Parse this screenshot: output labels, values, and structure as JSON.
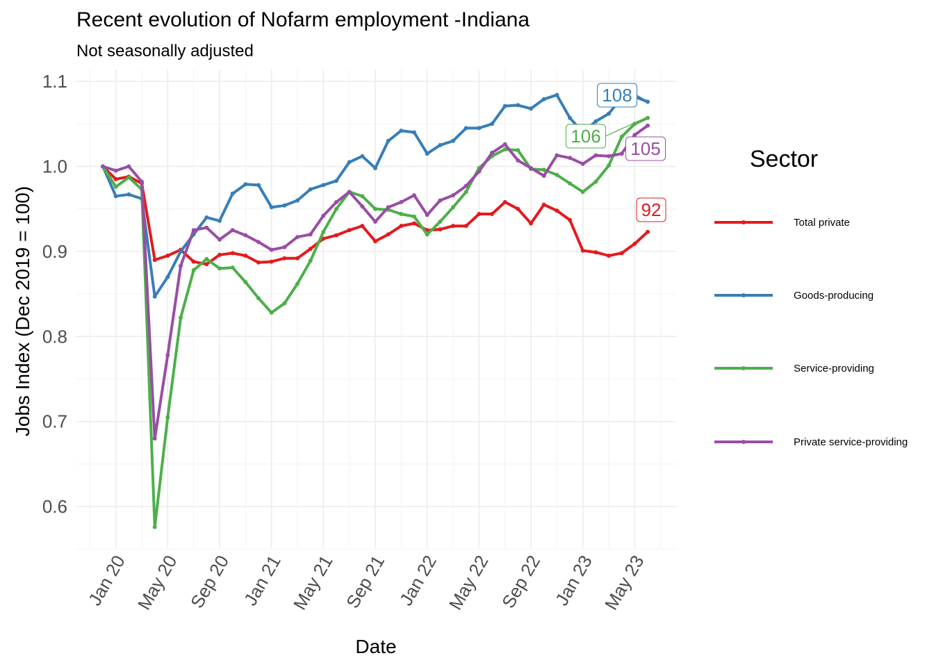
{
  "chart_data": {
    "type": "line",
    "title": "Recent evolution of Nofarm employment -Indiana",
    "subtitle": "Not seasonally adjusted",
    "xlabel": "Date",
    "ylabel": "Jobs Index (Dec 2019 = 100)",
    "ylim": [
      0.55,
      1.1
    ],
    "y_ticks": [
      0.6,
      0.7,
      0.8,
      0.9,
      1.0,
      1.1
    ],
    "y_tick_labels": [
      "0.6",
      "0.7",
      "0.8",
      "0.9",
      "1.0",
      "1.1"
    ],
    "x_ticks": [
      "Jan 20",
      "May 20",
      "Sep 20",
      "Jan 21",
      "May 21",
      "Sep 21",
      "Jan 22",
      "May 22",
      "Sep 22",
      "Jan 23",
      "May 23"
    ],
    "x_tick_index": [
      1,
      5,
      9,
      13,
      17,
      21,
      25,
      29,
      33,
      37,
      41
    ],
    "x_start": "Dec 2019",
    "x_end": "Jun 2023",
    "grid": true,
    "legend": {
      "title": "Sector",
      "position": "right"
    },
    "series": [
      {
        "name": "Total private",
        "color": "#E41A1C",
        "end_label": "92",
        "values": [
          1.0,
          0.985,
          0.988,
          0.98,
          0.89,
          0.895,
          0.902,
          0.888,
          0.885,
          0.896,
          0.898,
          0.895,
          0.887,
          0.888,
          0.892,
          0.892,
          0.903,
          0.915,
          0.919,
          0.925,
          0.93,
          0.912,
          0.92,
          0.93,
          0.933,
          0.925,
          0.926,
          0.93,
          0.93,
          0.944,
          0.944,
          0.958,
          0.95,
          0.933,
          0.955,
          0.948,
          0.937,
          0.901,
          0.899,
          0.895,
          0.898,
          0.909,
          0.923
        ]
      },
      {
        "name": "Goods-producing",
        "color": "#377EB8",
        "end_label": "108",
        "values": [
          1.0,
          0.965,
          0.967,
          0.962,
          0.847,
          0.87,
          0.9,
          0.92,
          0.94,
          0.936,
          0.968,
          0.979,
          0.978,
          0.952,
          0.954,
          0.96,
          0.973,
          0.978,
          0.983,
          1.005,
          1.012,
          0.998,
          1.03,
          1.042,
          1.04,
          1.015,
          1.025,
          1.03,
          1.045,
          1.045,
          1.05,
          1.071,
          1.072,
          1.068,
          1.079,
          1.084,
          1.057,
          1.04,
          1.053,
          1.062,
          1.081,
          1.082,
          1.076
        ]
      },
      {
        "name": "Service-providing",
        "color": "#4DAF4A",
        "end_label": "106",
        "values": [
          1.0,
          0.976,
          0.987,
          0.973,
          0.576,
          0.705,
          0.822,
          0.878,
          0.891,
          0.88,
          0.881,
          0.864,
          0.845,
          0.828,
          0.839,
          0.862,
          0.889,
          0.923,
          0.95,
          0.97,
          0.965,
          0.95,
          0.949,
          0.944,
          0.941,
          0.92,
          0.935,
          0.952,
          0.97,
          0.998,
          1.012,
          1.02,
          1.019,
          0.997,
          0.996,
          0.99,
          0.98,
          0.97,
          0.982,
          1.001,
          1.035,
          1.05,
          1.057
        ]
      },
      {
        "name": "Private service-providing",
        "color": "#984EA3",
        "end_label": "105",
        "values": [
          1.0,
          0.995,
          1.0,
          0.982,
          0.68,
          0.778,
          0.883,
          0.925,
          0.928,
          0.914,
          0.925,
          0.919,
          0.911,
          0.902,
          0.905,
          0.917,
          0.92,
          0.942,
          0.958,
          0.97,
          0.953,
          0.935,
          0.952,
          0.958,
          0.966,
          0.943,
          0.96,
          0.966,
          0.977,
          0.994,
          1.016,
          1.026,
          1.007,
          0.998,
          0.989,
          1.013,
          1.01,
          1.003,
          1.013,
          1.012,
          1.015,
          1.037,
          1.048
        ]
      }
    ]
  }
}
